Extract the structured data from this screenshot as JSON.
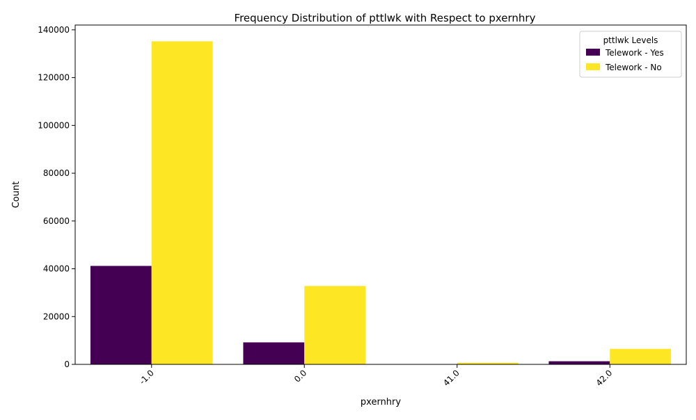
{
  "chart_data": {
    "type": "bar",
    "title": "Frequency Distribution of pttlwk with Respect to pxernhry",
    "xlabel": "pxernhry",
    "ylabel": "Count",
    "categories": [
      "-1.0",
      "0.0",
      "41.0",
      "42.0"
    ],
    "series": [
      {
        "name": "Telework - Yes",
        "color": "#440154",
        "values": [
          41200,
          9200,
          100,
          1300
        ]
      },
      {
        "name": "Telework - No",
        "color": "#fde725",
        "values": [
          135200,
          32800,
          700,
          6500
        ]
      }
    ],
    "ylim": [
      0,
      142000
    ],
    "yticks": [
      0,
      20000,
      40000,
      60000,
      80000,
      100000,
      120000,
      140000
    ],
    "legend": {
      "title": "pttlwk Levels",
      "placement": "top-right"
    },
    "grid": false,
    "xtick_rotation": 45
  }
}
